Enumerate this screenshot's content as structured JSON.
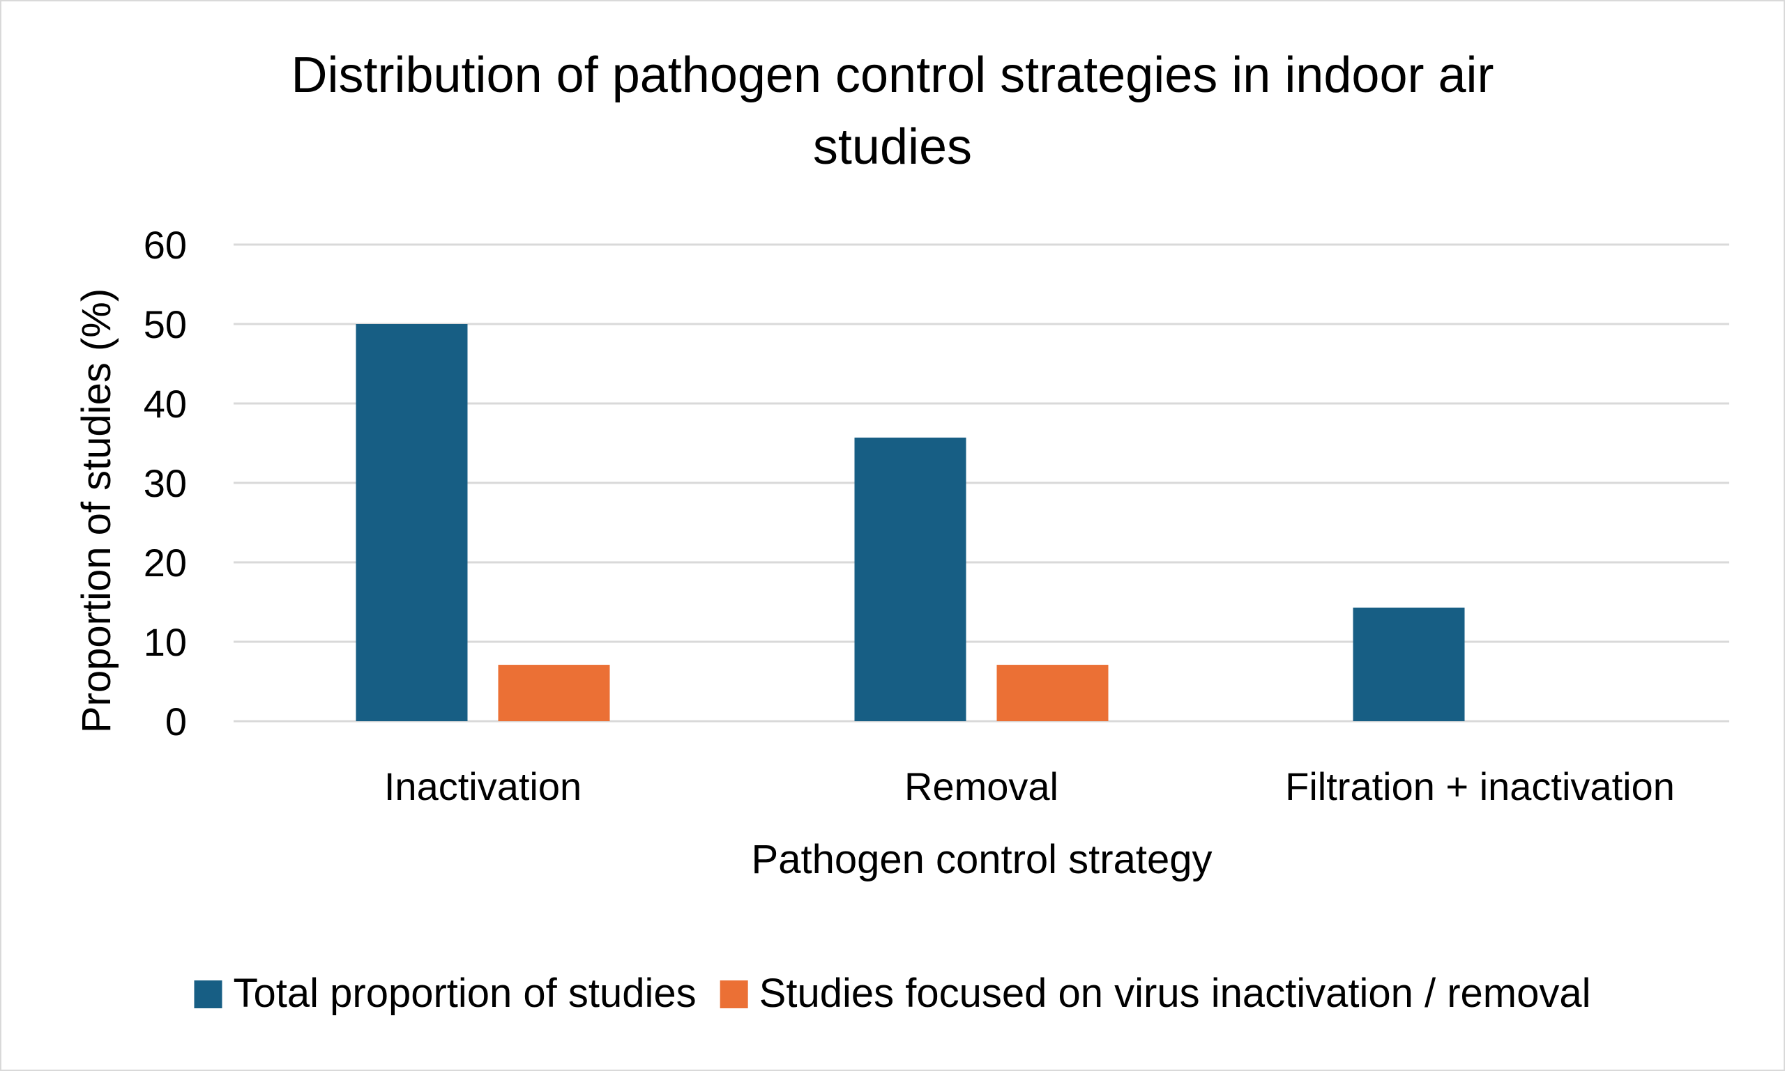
{
  "chart_data": {
    "type": "bar",
    "title_lines": [
      "Distribution of pathogen control strategies in indoor air",
      "studies"
    ],
    "xlabel": "Pathogen control strategy",
    "ylabel": "Proportion of studies (%)",
    "ylim": [
      0,
      60
    ],
    "yticks": [
      0,
      10,
      20,
      30,
      40,
      50,
      60
    ],
    "grid": true,
    "legend_position": "bottom",
    "categories": [
      "Inactivation",
      "Removal",
      "Filtration + inactivation"
    ],
    "series": [
      {
        "name": "Total proportion of studies",
        "color": "#175e84",
        "values": [
          50,
          35.7,
          14.3
        ]
      },
      {
        "name": "Studies focused on virus inactivation / removal",
        "color": "#eb7035",
        "values": [
          7.1,
          7.1,
          0
        ]
      }
    ]
  }
}
